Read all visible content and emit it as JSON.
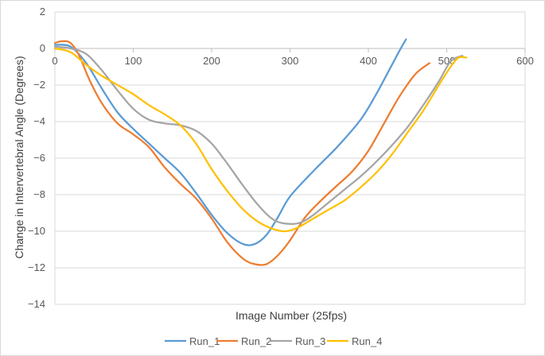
{
  "chart_data": {
    "type": "line",
    "title": "",
    "xlabel": "Image Number (25fps)",
    "ylabel": "Change in Intervertebral Angle (Degrees)",
    "xlim": [
      0,
      600
    ],
    "ylim": [
      -14,
      2
    ],
    "xticks": [
      0,
      100,
      200,
      300,
      400,
      500,
      600
    ],
    "yticks": [
      2,
      0,
      -2,
      -4,
      -6,
      -8,
      -10,
      -12,
      -14
    ],
    "ytick_labels": [
      "2",
      "0",
      "−2",
      "−4",
      "−6",
      "−8",
      "−10",
      "−12",
      "−14"
    ],
    "grid": true,
    "legend_position": "bottom",
    "series": [
      {
        "name": "Run_1",
        "color": "#5B9BD5",
        "points": [
          [
            0,
            0.2
          ],
          [
            20,
            0.1
          ],
          [
            40,
            -0.8
          ],
          [
            60,
            -2.2
          ],
          [
            80,
            -3.5
          ],
          [
            100,
            -4.4
          ],
          [
            120,
            -5.2
          ],
          [
            140,
            -6.0
          ],
          [
            160,
            -6.8
          ],
          [
            180,
            -7.9
          ],
          [
            200,
            -9.1
          ],
          [
            220,
            -10.1
          ],
          [
            240,
            -10.7
          ],
          [
            255,
            -10.7
          ],
          [
            270,
            -10.2
          ],
          [
            285,
            -9.2
          ],
          [
            300,
            -8.1
          ],
          [
            330,
            -6.7
          ],
          [
            360,
            -5.4
          ],
          [
            390,
            -3.9
          ],
          [
            410,
            -2.5
          ],
          [
            430,
            -0.9
          ],
          [
            440,
            -0.1
          ],
          [
            448,
            0.5
          ]
        ]
      },
      {
        "name": "Run_2",
        "color": "#ED7D31",
        "points": [
          [
            0,
            0.3
          ],
          [
            10,
            0.4
          ],
          [
            20,
            0.3
          ],
          [
            30,
            -0.3
          ],
          [
            45,
            -1.8
          ],
          [
            60,
            -3.0
          ],
          [
            80,
            -4.1
          ],
          [
            100,
            -4.7
          ],
          [
            120,
            -5.4
          ],
          [
            140,
            -6.5
          ],
          [
            160,
            -7.4
          ],
          [
            180,
            -8.2
          ],
          [
            200,
            -9.3
          ],
          [
            220,
            -10.6
          ],
          [
            240,
            -11.5
          ],
          [
            255,
            -11.8
          ],
          [
            270,
            -11.8
          ],
          [
            285,
            -11.3
          ],
          [
            300,
            -10.5
          ],
          [
            320,
            -9.2
          ],
          [
            340,
            -8.3
          ],
          [
            360,
            -7.5
          ],
          [
            380,
            -6.7
          ],
          [
            400,
            -5.6
          ],
          [
            420,
            -4.1
          ],
          [
            440,
            -2.6
          ],
          [
            460,
            -1.4
          ],
          [
            478,
            -0.8
          ]
        ]
      },
      {
        "name": "Run_3",
        "color": "#A5A5A5",
        "points": [
          [
            0,
            0.1
          ],
          [
            20,
            0.0
          ],
          [
            40,
            -0.3
          ],
          [
            60,
            -1.2
          ],
          [
            80,
            -2.3
          ],
          [
            100,
            -3.3
          ],
          [
            120,
            -3.9
          ],
          [
            140,
            -4.1
          ],
          [
            160,
            -4.2
          ],
          [
            180,
            -4.5
          ],
          [
            200,
            -5.2
          ],
          [
            220,
            -6.3
          ],
          [
            240,
            -7.5
          ],
          [
            260,
            -8.6
          ],
          [
            280,
            -9.4
          ],
          [
            300,
            -9.6
          ],
          [
            315,
            -9.5
          ],
          [
            330,
            -9.1
          ],
          [
            350,
            -8.4
          ],
          [
            370,
            -7.7
          ],
          [
            390,
            -7.0
          ],
          [
            410,
            -6.2
          ],
          [
            430,
            -5.3
          ],
          [
            450,
            -4.3
          ],
          [
            470,
            -3.1
          ],
          [
            490,
            -1.8
          ],
          [
            505,
            -0.7
          ],
          [
            520,
            -0.4
          ]
        ]
      },
      {
        "name": "Run_4",
        "color": "#FFC000",
        "points": [
          [
            0,
            0.0
          ],
          [
            20,
            -0.2
          ],
          [
            40,
            -0.9
          ],
          [
            60,
            -1.5
          ],
          [
            80,
            -2.0
          ],
          [
            100,
            -2.5
          ],
          [
            120,
            -3.1
          ],
          [
            140,
            -3.6
          ],
          [
            160,
            -4.2
          ],
          [
            180,
            -5.2
          ],
          [
            200,
            -6.6
          ],
          [
            220,
            -7.8
          ],
          [
            240,
            -8.8
          ],
          [
            260,
            -9.5
          ],
          [
            280,
            -9.9
          ],
          [
            295,
            -10.0
          ],
          [
            310,
            -9.8
          ],
          [
            330,
            -9.3
          ],
          [
            350,
            -8.8
          ],
          [
            370,
            -8.3
          ],
          [
            390,
            -7.6
          ],
          [
            410,
            -6.8
          ],
          [
            430,
            -5.8
          ],
          [
            450,
            -4.6
          ],
          [
            470,
            -3.4
          ],
          [
            490,
            -2.0
          ],
          [
            505,
            -1.0
          ],
          [
            515,
            -0.5
          ],
          [
            525,
            -0.5
          ]
        ]
      }
    ]
  }
}
